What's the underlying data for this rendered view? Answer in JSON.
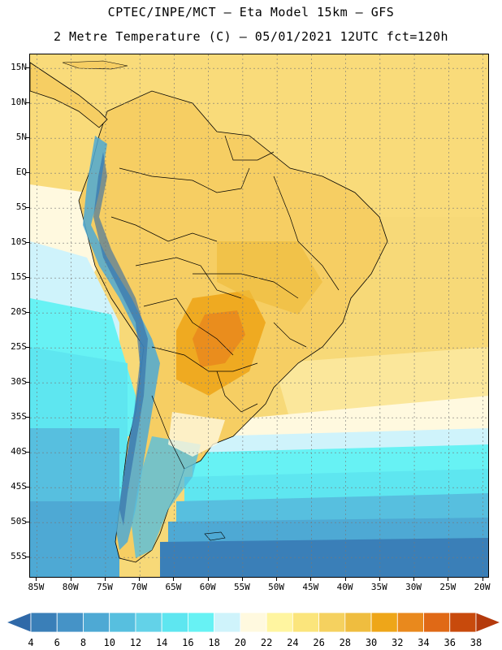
{
  "header": {
    "line1": "CPTEC/INPE/MCT –  Eta Model 15km – GFS",
    "line2": "2 Metre Temperature (C) – 05/01/2021 12UTC fct=120h"
  },
  "map": {
    "lat_labels": [
      "15N",
      "10N",
      "5N",
      "EQ",
      "5S",
      "10S",
      "15S",
      "20S",
      "25S",
      "30S",
      "35S",
      "40S",
      "45S",
      "50S",
      "55S"
    ],
    "lat_values": [
      15,
      10,
      5,
      0,
      -5,
      -10,
      -15,
      -20,
      -25,
      -30,
      -35,
      -40,
      -45,
      -50,
      -55
    ],
    "lon_labels": [
      "85W",
      "80W",
      "75W",
      "70W",
      "65W",
      "60W",
      "55W",
      "50W",
      "45W",
      "40W",
      "35W",
      "30W",
      "25W",
      "20W"
    ],
    "lon_values": [
      -85,
      -80,
      -75,
      -70,
      -65,
      -60,
      -55,
      -50,
      -45,
      -40,
      -35,
      -30,
      -25,
      -20
    ],
    "lat_range": [
      -58,
      17
    ],
    "lon_range": [
      -86,
      -19
    ]
  },
  "colorbar": {
    "labels": [
      "4",
      "6",
      "8",
      "10",
      "12",
      "14",
      "16",
      "18",
      "20",
      "22",
      "24",
      "26",
      "28",
      "30",
      "32",
      "34",
      "36",
      "38"
    ],
    "colors": [
      "#2f69a8",
      "#3a7fb8",
      "#4593c7",
      "#4ea9d4",
      "#57bfdf",
      "#63d2e8",
      "#5ee6f0",
      "#67f2f4",
      "#cff3fb",
      "#fff9df",
      "#fff5a0",
      "#fbe57c",
      "#f5d15f",
      "#efbd3f",
      "#eea619",
      "#e9891d",
      "#e06916",
      "#c84a0c",
      "#b43a0c"
    ]
  }
}
